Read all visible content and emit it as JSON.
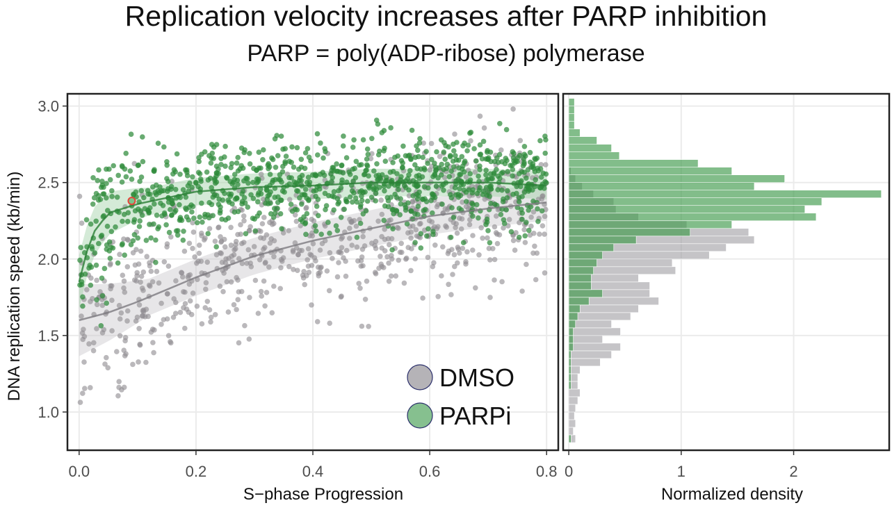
{
  "title": "Replication velocity increases after PARP inhibition",
  "subtitle": "PARP = poly(ADP-ribose) polymerase",
  "colors": {
    "dmso": "#8f8c91",
    "parpi": "#2e8b3a",
    "parpi_light": "#6db87a",
    "dmso_light": "#b5b3b7",
    "grid": "#ebebeb",
    "highlight": "#e8443a"
  },
  "chart_data": [
    {
      "type": "scatter",
      "xlabel": "S−phase Progression",
      "ylabel": "DNA replication speed (kb/min)",
      "xlim": [
        -0.02,
        0.82
      ],
      "ylim": [
        0.75,
        3.08
      ],
      "xticks": [
        "0.0",
        "0.2",
        "0.4",
        "0.6",
        "0.8"
      ],
      "yticks": [
        "1.0",
        "1.5",
        "2.0",
        "2.5",
        "3.0"
      ],
      "legend": {
        "position": "bottom-right",
        "entries": [
          "DMSO",
          "PARPi"
        ]
      },
      "series": [
        {
          "name": "DMSO",
          "trend_x": [
            0.0,
            0.05,
            0.1,
            0.2,
            0.3,
            0.4,
            0.5,
            0.6,
            0.7,
            0.8
          ],
          "trend_y": [
            1.6,
            1.65,
            1.72,
            1.88,
            2.02,
            2.12,
            2.2,
            2.28,
            2.33,
            2.37
          ],
          "trend_band": 0.12,
          "spread": 0.22,
          "n_points": 800
        },
        {
          "name": "PARPi",
          "trend_x": [
            0.0,
            0.02,
            0.05,
            0.1,
            0.2,
            0.3,
            0.4,
            0.5,
            0.6,
            0.7,
            0.8
          ],
          "trend_y": [
            1.85,
            2.15,
            2.3,
            2.36,
            2.44,
            2.47,
            2.48,
            2.5,
            2.5,
            2.5,
            2.48
          ],
          "trend_band": 0.09,
          "spread": 0.15,
          "n_points": 1000
        }
      ]
    },
    {
      "type": "bar",
      "orientation": "horizontal",
      "xlabel": "Normalized density",
      "xlim": [
        -0.05,
        2.85
      ],
      "xticks": [
        "0",
        "1",
        "2"
      ],
      "bin_width": 0.05,
      "series": [
        {
          "name": "DMSO",
          "bins_y": [
            0.8,
            0.85,
            0.9,
            0.95,
            1.0,
            1.05,
            1.1,
            1.15,
            1.2,
            1.25,
            1.3,
            1.35,
            1.4,
            1.45,
            1.5,
            1.55,
            1.6,
            1.65,
            1.7,
            1.75,
            1.8,
            1.85,
            1.9,
            1.95,
            2.0,
            2.05,
            2.1,
            2.15,
            2.2,
            2.25,
            2.3,
            2.35,
            2.4,
            2.45,
            2.5,
            2.55
          ],
          "values": [
            0.06,
            0.04,
            0.06,
            0.05,
            0.06,
            0.08,
            0.1,
            0.08,
            0.08,
            0.1,
            0.28,
            0.38,
            0.46,
            0.3,
            0.46,
            0.38,
            0.55,
            0.62,
            0.8,
            0.72,
            0.72,
            0.62,
            0.95,
            0.92,
            1.25,
            1.4,
            1.65,
            1.6,
            1.05,
            0.62,
            0.42,
            0.4,
            0.22,
            0.12,
            0.06,
            0.02
          ]
        },
        {
          "name": "PARPi",
          "bins_y": [
            0.8,
            0.85,
            0.9,
            0.95,
            1.0,
            1.05,
            1.1,
            1.15,
            1.2,
            1.25,
            1.3,
            1.35,
            1.4,
            1.45,
            1.5,
            1.55,
            1.6,
            1.65,
            1.7,
            1.75,
            1.8,
            1.85,
            1.9,
            1.95,
            2.0,
            2.05,
            2.1,
            2.15,
            2.2,
            2.25,
            2.3,
            2.35,
            2.4,
            2.45,
            2.5,
            2.55,
            2.6,
            2.65,
            2.7,
            2.75,
            2.8,
            2.85,
            2.9,
            2.95,
            3.0
          ],
          "values": [
            0.02,
            0.0,
            0.0,
            0.0,
            0.0,
            0.0,
            0.0,
            0.02,
            0.02,
            0.02,
            0.02,
            0.02,
            0.04,
            0.04,
            0.04,
            0.06,
            0.08,
            0.1,
            0.18,
            0.3,
            0.2,
            0.2,
            0.22,
            0.25,
            0.3,
            0.4,
            0.6,
            1.08,
            1.45,
            2.2,
            2.1,
            2.25,
            2.78,
            1.65,
            1.92,
            1.45,
            1.15,
            0.45,
            0.38,
            0.25,
            0.1,
            0.05,
            0.05,
            0.05,
            0.05
          ]
        }
      ]
    }
  ]
}
